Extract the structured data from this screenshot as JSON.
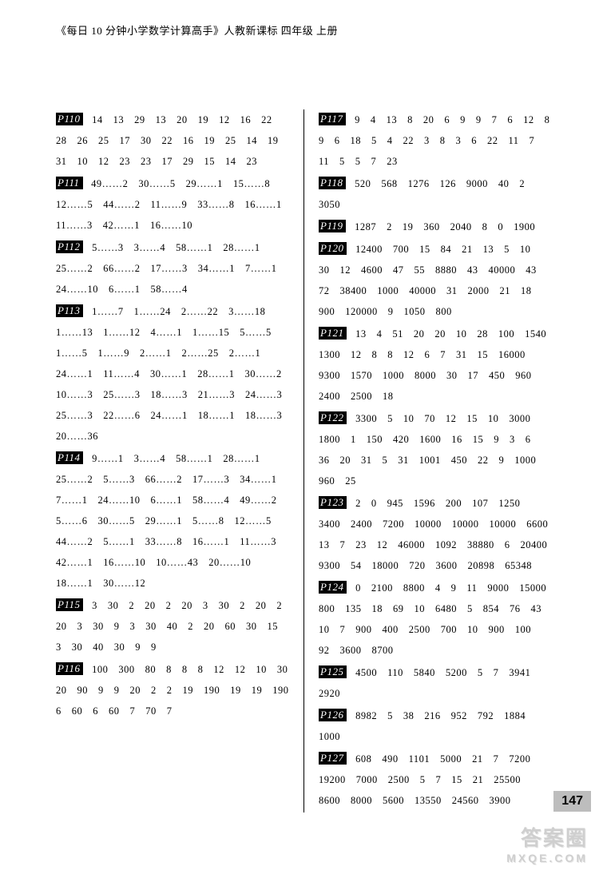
{
  "book_title": "《每日 10 分钟小学数学计算高手》人教新课标 四年级 上册",
  "page_number": "147",
  "watermark": {
    "line1": "答案圈",
    "line2": "MXQE.COM"
  },
  "left_entries": [
    {
      "label": "P110",
      "text": "14　13　29　13　20　19　12　16　22　28　26　25　17　30　22　16　19　25　14　19　31　10　12　23　23　17　29　15　14　23"
    },
    {
      "label": "P111",
      "text": "49……2　30……5　29……1　15……8　12……5　44……2　11……9　33……8　16……1　11……3　42……1　16……10"
    },
    {
      "label": "P112",
      "text": "5……3　3……4　58……1　28……1　25……2　66……2　17……3　34……1　7……1　24……10　6……1　58……4"
    },
    {
      "label": "P113",
      "text": "1……7　1……24　2……22　3……18　1……13　1……12　4……1　1……15　5……5　1……5　1……9　2……1　2……25　2……1　24……1　11……4　30……1　28……1　30……2　10……3　25……3　18……3　21……3　24……3　25……3　22……6　24……1　18……1　18……3　20……36"
    },
    {
      "label": "P114",
      "text": "9……1　3……4　58……1　28……1　25……2　5……3　66……2　17……3　34……1　7……1　24……10　6……1　58……4　49……2　5……6　30……5　29……1　5……8　12……5　44……2　5……1　33……8　16……1　11……3　42……1　16……10　10……43　20……10　18……1　30……12"
    },
    {
      "label": "P115",
      "text": "3　30　2　20　2　20　3　30　2　20　2　20　3　30　9　3　30　40　2　20　60　30　15　3　30　40　30　9　9"
    },
    {
      "label": "P116",
      "text": "100　300　80　8　8　8　12　12　10　30　20　90　9　9　20　2　2　19　190　19　19　190　6　60　6　60　7　70　7"
    }
  ],
  "right_entries": [
    {
      "label": "P117",
      "text": "9　4　13　8　20　6　9　9　7　6　12　8　9　6　18　5　4　22　3　8　3　6　22　11　7　11　5　5　7　23"
    },
    {
      "label": "P118",
      "text": "520　568　1276　126　9000　40　2　3050"
    },
    {
      "label": "P119",
      "text": "1287　2　19　360　2040　8　0　1900"
    },
    {
      "label": "P120",
      "text": "12400　700　15　84　21　13　5　10　30　12　4600　47　55　8880　43　40000　43　72　38400　1000　40000　31　2000　21　18　900　120000　9　1050　800"
    },
    {
      "label": "P121",
      "text": "13　4　51　20　20　10　28　100　1540　1300　12　8　8　12　6　7　31　15　16000　9300　1570　1000　8000　30　17　450　960　2400　2500　18"
    },
    {
      "label": "P122",
      "text": "3300　5　10　70　12　15　10　3000　1800　1　150　420　1600　16　15　9　3　6　36　20　31　5　31　1001　450　22　9　1000　960　25"
    },
    {
      "label": "P123",
      "text": "2　0　945　1596　200　107　1250　3400　2400　7200　10000　10000　10000　6600　13　7　23　12　46000　1092　38880　6　20400　9300　54　18000　720　3600　20898　65348"
    },
    {
      "label": "P124",
      "text": "0　2100　8800　4　9　11　9000　15000　800　135　18　69　10　6480　5　854　76　43　10　7　900　400　2500　700　10　900　100　92　3600　8700"
    },
    {
      "label": "P125",
      "text": "4500　110　5840　5200　5　7　3941　2920"
    },
    {
      "label": "P126",
      "text": "8982　5　38　216　952　792　1884　1000"
    },
    {
      "label": "P127",
      "text": "608　490　1101　5000　21　7　7200　19200　7000　2500　5　7　15　21　25500　8600　8000　5600　13550　24560　3900"
    }
  ]
}
